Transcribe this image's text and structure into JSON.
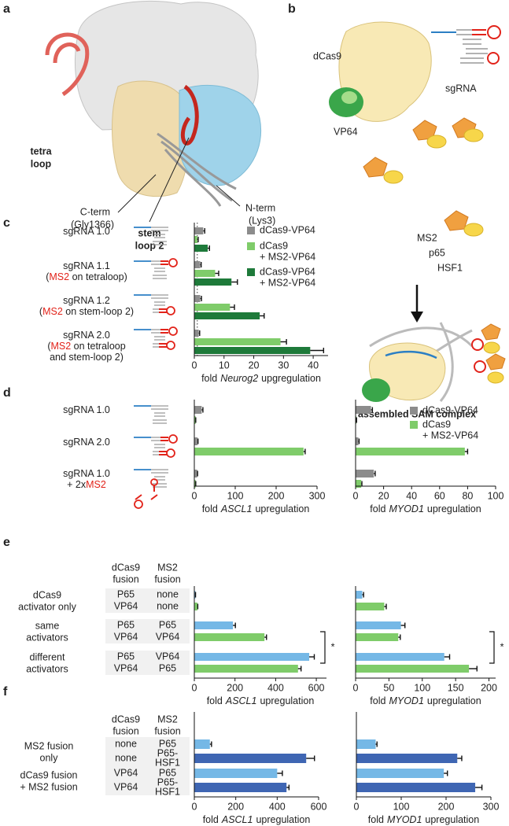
{
  "panel_labels": [
    "a",
    "b",
    "c",
    "d",
    "e",
    "f"
  ],
  "panel_a": {
    "tetra_loop": [
      "tetra",
      "loop"
    ],
    "c_term": [
      "C-term",
      "(Gly1366)"
    ],
    "stem_loop": [
      "stem",
      "loop 2"
    ],
    "n_term": [
      "N-term",
      "(Lys3)"
    ]
  },
  "panel_b": {
    "dcas9": "dCas9",
    "vp64": "VP64",
    "sgrna": "sgRNA",
    "ms2": "MS2",
    "p65": "p65",
    "hsf1": "HSF1",
    "complex": "assembled SAM complex"
  },
  "panel_c": {
    "rows": [
      [
        [
          "sgRNA 1.0"
        ]
      ],
      [
        [
          "sgRNA 1.1"
        ],
        [
          "(",
          {
            "text": "MS2",
            "color": "#e2231a"
          },
          " on tetraloop)"
        ]
      ],
      [
        [
          "sgRNA 1.2"
        ],
        [
          "(",
          {
            "text": "MS2",
            "color": "#e2231a"
          },
          " on stem-loop 2)"
        ]
      ],
      [
        [
          "sgRNA 2.0"
        ],
        [
          "(",
          {
            "text": "MS2",
            "color": "#e2231a"
          },
          " on tetraloop"
        ],
        [
          "and stem-loop 2)"
        ]
      ]
    ]
  },
  "panel_d": {
    "rows": [
      [
        [
          "sgRNA 1.0"
        ]
      ],
      [
        [
          "sgRNA 2.0"
        ]
      ],
      [
        [
          "sgRNA 1.0"
        ],
        [
          "+ 2x",
          {
            "text": "MS2",
            "color": "#e2231a"
          }
        ]
      ]
    ]
  },
  "panel_e": {
    "header": [
      [
        "dCas9",
        "fusion"
      ],
      [
        "MS2",
        "fusion"
      ]
    ],
    "groups": [
      {
        "label": [
          "dCas9",
          "activator only"
        ],
        "rows": [
          [
            {
              "text": [
                "P65"
              ],
              "color": "#2a9bd6"
            },
            {
              "text": [
                "none"
              ]
            }
          ],
          [
            {
              "text": [
                "VP64"
              ],
              "color": "#1e7a3a"
            },
            {
              "text": [
                "none"
              ]
            }
          ]
        ]
      },
      {
        "label": [
          "same",
          "activators"
        ],
        "rows": [
          [
            {
              "text": [
                "P65"
              ],
              "color": "#2a9bd6"
            },
            {
              "text": [
                "P65"
              ],
              "color": "#2a9bd6"
            }
          ],
          [
            {
              "text": [
                "VP64"
              ],
              "color": "#1e7a3a"
            },
            {
              "text": [
                "VP64"
              ],
              "color": "#1e7a3a"
            }
          ]
        ]
      },
      {
        "label": [
          "different",
          "activators"
        ],
        "rows": [
          [
            {
              "text": [
                "P65"
              ],
              "color": "#2a9bd6"
            },
            {
              "text": [
                "VP64"
              ],
              "color": "#1e7a3a"
            }
          ],
          [
            {
              "text": [
                "VP64"
              ],
              "color": "#1e7a3a"
            },
            {
              "text": [
                "P65"
              ],
              "color": "#2a9bd6"
            }
          ]
        ]
      }
    ]
  },
  "panel_f": {
    "header": [
      [
        "dCas9",
        "fusion"
      ],
      [
        "MS2",
        "fusion"
      ]
    ],
    "groups": [
      {
        "label": [
          "MS2 fusion",
          "only"
        ],
        "rows": [
          [
            {
              "text": [
                "none"
              ]
            },
            {
              "text": [
                "P65"
              ],
              "color": "#2a9bd6"
            }
          ],
          [
            {
              "text": [
                "none"
              ]
            },
            {
              "text": [
                "P65-",
                "HSF1"
              ],
              "color": "#3f66b3"
            }
          ]
        ]
      },
      {
        "label": [
          "dCas9 fusion",
          "+ MS2 fusion"
        ],
        "rows": [
          [
            {
              "text": [
                "VP64"
              ],
              "color": "#1e7a3a"
            },
            {
              "text": [
                "P65"
              ],
              "color": "#2a9bd6"
            }
          ],
          [
            {
              "text": [
                "VP64"
              ],
              "color": "#1e7a3a"
            },
            {
              "text": [
                "P65-",
                "HSF1"
              ],
              "color": "#3f66b3"
            }
          ]
        ]
      }
    ]
  },
  "chart_data": [
    {
      "type": "bar",
      "orientation": "horizontal",
      "xlim": [
        0,
        45
      ],
      "xticks": [
        0,
        10,
        20,
        30,
        40
      ],
      "reference_line": 1,
      "legend": true,
      "xlabel": {
        "pre": "fold",
        "gene": "Neurog2",
        "post": "upgregulation"
      },
      "series": [
        {
          "name": [
            "dCas9-VP64"
          ],
          "color": "#8c8c8c",
          "values": [
            3,
            2,
            2,
            1.5
          ],
          "errors": [
            0.5,
            0.3,
            0.4,
            0.3
          ]
        },
        {
          "name": [
            "dCas9",
            "+ MS2-VP64"
          ],
          "color": "#7fcc6a",
          "values": [
            1,
            7,
            12,
            29
          ],
          "errors": [
            0.3,
            1.2,
            1.5,
            2
          ]
        },
        {
          "name": [
            "dCas9-VP64",
            "+ MS2-VP64"
          ],
          "color": "#1e7a3a",
          "values": [
            4.5,
            12.5,
            22,
            39
          ],
          "errors": [
            0.6,
            2,
            1.5,
            4.5
          ]
        }
      ]
    },
    {
      "type": "bar",
      "orientation": "horizontal",
      "xlim": [
        0,
        300
      ],
      "xticks": [
        0,
        100,
        200,
        300
      ],
      "xlabel": {
        "pre": "fold",
        "gene": "ASCL1",
        "post": "upregulation"
      },
      "series": [
        {
          "color": "#8c8c8c",
          "values": [
            18,
            8,
            7
          ],
          "errors": [
            3,
            1,
            1
          ]
        },
        {
          "color": "#7fcc6a",
          "values": [
            3,
            267,
            3
          ],
          "errors": [
            0.5,
            4,
            0.5
          ]
        }
      ]
    },
    {
      "type": "bar",
      "orientation": "horizontal",
      "xlim": [
        0,
        100
      ],
      "xticks": [
        0,
        20,
        40,
        60,
        80,
        100
      ],
      "legend": true,
      "xlabel": {
        "pre": "fold",
        "gene": "MYOD1",
        "post": "upregulation"
      },
      "series": [
        {
          "name": [
            "dCas9-VP64"
          ],
          "color": "#8c8c8c",
          "values": [
            11,
            2,
            13
          ],
          "errors": [
            1,
            0.5,
            1
          ]
        },
        {
          "name": [
            "dCas9",
            "+ MS2-VP64"
          ],
          "color": "#7fcc6a",
          "values": [
            0.5,
            78,
            4
          ],
          "errors": [
            0.2,
            2,
            0.5
          ]
        }
      ]
    },
    {
      "type": "bar",
      "orientation": "horizontal",
      "xlim": [
        0,
        650
      ],
      "xticks": [
        0,
        200,
        400,
        600
      ],
      "significance": {
        "label": "*",
        "groups": [
          1,
          2
        ]
      },
      "xlabel": {
        "pre": "fold",
        "gene": "ASCL1",
        "post": "upregulation"
      },
      "series": [
        {
          "color": "#75b8e6",
          "values": [
            5,
            190,
            565
          ],
          "errors": [
            1,
            12,
            25
          ]
        },
        {
          "color": "#7fcc6a",
          "values": [
            15,
            345,
            510
          ],
          "errors": [
            2,
            10,
            15
          ]
        }
      ]
    },
    {
      "type": "bar",
      "orientation": "horizontal",
      "xlim": [
        0,
        210
      ],
      "xticks": [
        0,
        50,
        100,
        150,
        200
      ],
      "significance": {
        "label": "*",
        "groups": [
          1,
          2
        ]
      },
      "xlabel": {
        "pre": "fold",
        "gene": "MYOD1",
        "post": "upregulation"
      },
      "series": [
        {
          "color": "#75b8e6",
          "values": [
            10,
            68,
            133
          ],
          "errors": [
            2,
            6,
            8
          ]
        },
        {
          "color": "#7fcc6a",
          "values": [
            43,
            64,
            170
          ],
          "errors": [
            3,
            3,
            12
          ]
        }
      ]
    },
    {
      "type": "bar",
      "orientation": "horizontal",
      "xlim": [
        0,
        600
      ],
      "xticks": [
        0,
        200,
        400,
        600
      ],
      "xlabel": {
        "pre": "fold",
        "gene": "ASCL1",
        "post": "upregulation"
      },
      "series": [
        {
          "color": "#75b8e6",
          "values": [
            75,
            400
          ],
          "errors": [
            8,
            25
          ]
        },
        {
          "color": "#3f66b3",
          "values": [
            540,
            445
          ],
          "errors": [
            40,
            12
          ]
        }
      ]
    },
    {
      "type": "bar",
      "orientation": "horizontal",
      "xlim": [
        0,
        300
      ],
      "xticks": [
        0,
        100,
        200,
        300
      ],
      "xlabel": {
        "pre": "fold",
        "gene": "MYOD1",
        "post": "upregulation"
      },
      "series": [
        {
          "color": "#75b8e6",
          "values": [
            43,
            195
          ],
          "errors": [
            3,
            8
          ]
        },
        {
          "color": "#3f66b3",
          "values": [
            225,
            265
          ],
          "errors": [
            10,
            15
          ]
        }
      ]
    }
  ]
}
